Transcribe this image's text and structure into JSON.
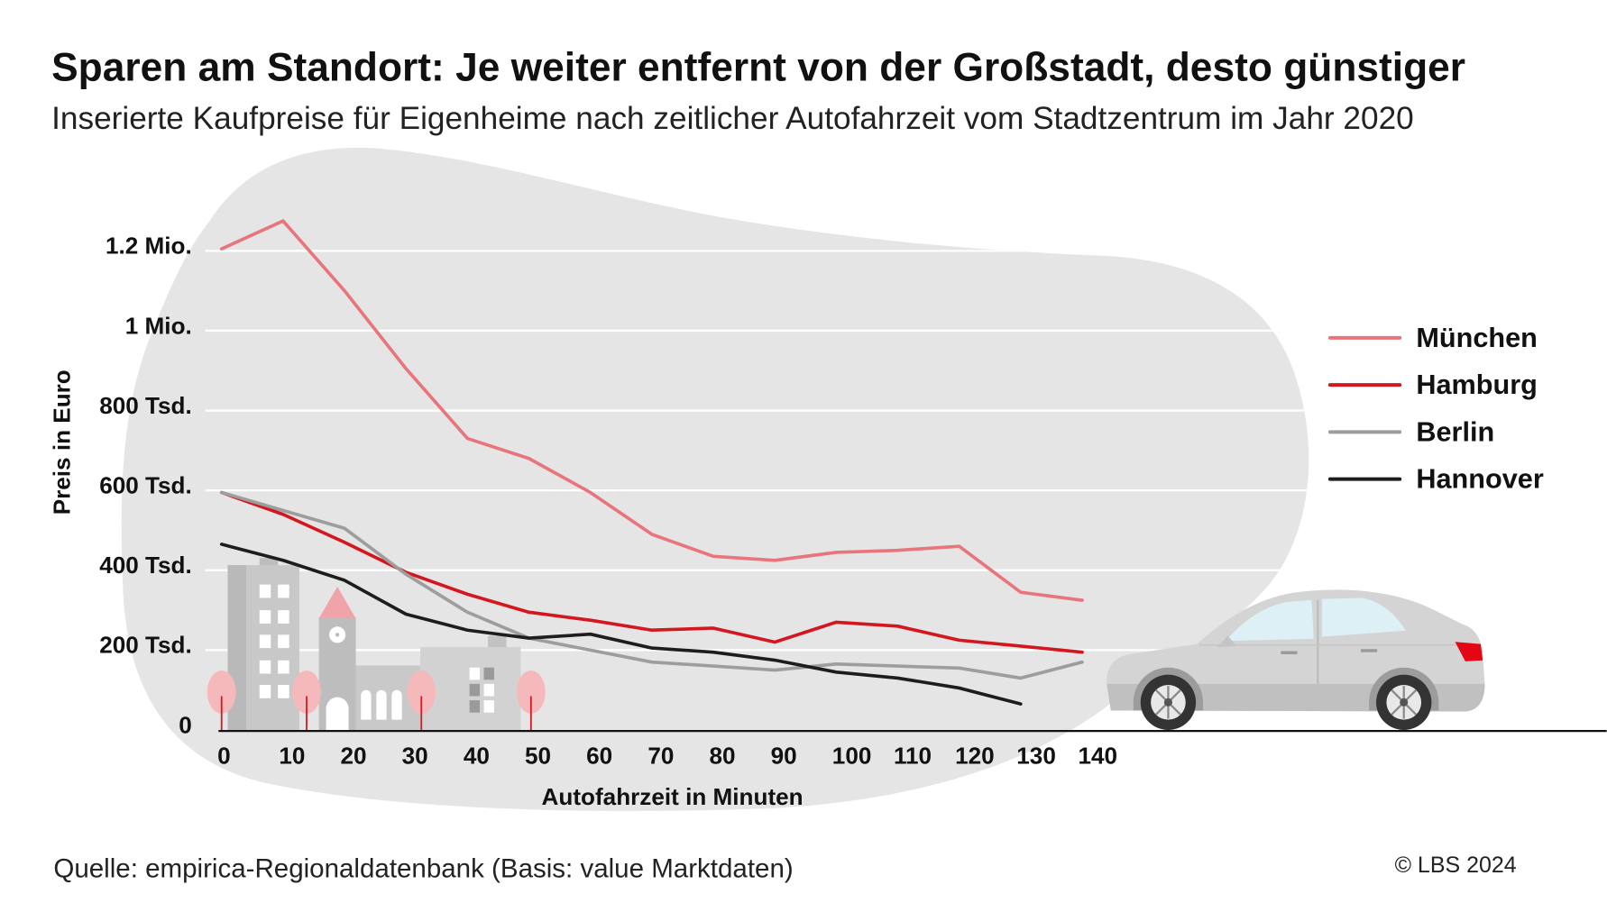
{
  "chart_data": {
    "type": "line",
    "title": "Sparen am Standort: Je weiter entfernt von der Großstadt, desto günstiger",
    "subtitle": "Inserierte Kaufpreise für Eigenheime nach zeitlicher Autofahrzeit vom Stadtzentrum im Jahr 2020",
    "xlabel": "Autofahrzeit in Minuten",
    "ylabel": "Preis in Euro",
    "x": [
      0,
      10,
      20,
      30,
      40,
      50,
      60,
      70,
      80,
      90,
      100,
      110,
      120,
      130,
      140
    ],
    "x_tick_labels": [
      "0",
      "10",
      "20",
      "30",
      "40",
      "50",
      "60",
      "70",
      "80",
      "90",
      "100",
      "110",
      "120",
      "130",
      "140"
    ],
    "y_ticks": [
      0,
      200000,
      400000,
      600000,
      800000,
      1000000,
      1200000
    ],
    "y_tick_labels": [
      "0",
      "200 Tsd.",
      "400 Tsd.",
      "600 Tsd.",
      "800 Tsd.",
      "1 Mio.",
      "1.2 Mio."
    ],
    "xlim": [
      0,
      140
    ],
    "ylim": [
      0,
      1300000
    ],
    "grid": true,
    "legend_position": "right",
    "series": [
      {
        "name": "München",
        "color": "#e8747c",
        "values": [
          1205000,
          1275000,
          1100000,
          905000,
          730000,
          680000,
          595000,
          490000,
          435000,
          425000,
          445000,
          450000,
          460000,
          345000,
          325000
        ]
      },
      {
        "name": "Hamburg",
        "color": "#d4161e",
        "values": [
          595000,
          540000,
          470000,
          395000,
          340000,
          295000,
          275000,
          250000,
          255000,
          220000,
          270000,
          260000,
          225000,
          210000,
          195000
        ]
      },
      {
        "name": "Berlin",
        "color": "#9d9d9d",
        "values": [
          595000,
          550000,
          505000,
          390000,
          295000,
          230000,
          200000,
          170000,
          160000,
          150000,
          165000,
          160000,
          155000,
          130000,
          170000
        ]
      },
      {
        "name": "Hannover",
        "color": "#1d1d1b",
        "values": [
          465000,
          425000,
          375000,
          290000,
          250000,
          230000,
          240000,
          205000,
          195000,
          175000,
          145000,
          130000,
          105000,
          65000,
          null
        ]
      }
    ]
  },
  "footer": {
    "source": "Quelle: empirica-Regionaldatenbank (Basis: value Marktdaten)",
    "copyright": "© LBS 2024"
  },
  "colors": {
    "background_blob": "#e5e5e5",
    "gridline": "#ffffff",
    "axis": "#111111",
    "church_roof": "#f0a3a8",
    "tree": "#f5b9bc",
    "tree_trunk": "#d71921",
    "car_tail_light": "#e30613"
  }
}
